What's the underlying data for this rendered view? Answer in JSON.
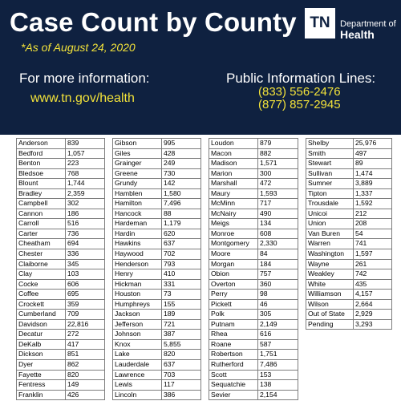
{
  "header": {
    "title": "Case Count by County",
    "as_of": "*As of August 24, 2020",
    "info_label": "For more information:",
    "info_link": "www.tn.gov/health",
    "lines_label": "Public Information Lines:",
    "phone1": "(833) 556-2476",
    "phone2": "(877) 857-2945"
  },
  "logo": {
    "mark": "TN",
    "line1": "Department of",
    "line2": "Health",
    "colors": {
      "background": "#ffffff",
      "text": "#0f2140"
    }
  },
  "colors": {
    "header_bg": "#0f2140",
    "accent_yellow": "#f2e23a",
    "border": "#7d7d7d"
  },
  "tables": [
    {
      "rows": [
        [
          "Anderson",
          "839"
        ],
        [
          "Bedford",
          "1,057"
        ],
        [
          "Benton",
          "223"
        ],
        [
          "Bledsoe",
          "768"
        ],
        [
          "Blount",
          "1,744"
        ],
        [
          "Bradley",
          "2,359"
        ],
        [
          "Campbell",
          "302"
        ],
        [
          "Cannon",
          "186"
        ],
        [
          "Carroll",
          "516"
        ],
        [
          "Carter",
          "736"
        ],
        [
          "Cheatham",
          "694"
        ],
        [
          "Chester",
          "336"
        ],
        [
          "Claiborne",
          "345"
        ],
        [
          "Clay",
          "103"
        ],
        [
          "Cocke",
          "606"
        ],
        [
          "Coffee",
          "695"
        ],
        [
          "Crockett",
          "359"
        ],
        [
          "Cumberland",
          "709"
        ],
        [
          "Davidson",
          "22,816"
        ],
        [
          "Decatur",
          "272"
        ],
        [
          "DeKalb",
          "417"
        ],
        [
          "Dickson",
          "851"
        ],
        [
          "Dyer",
          "862"
        ],
        [
          "Fayette",
          "820"
        ],
        [
          "Fentress",
          "149"
        ],
        [
          "Franklin",
          "426"
        ]
      ]
    },
    {
      "rows": [
        [
          "Gibson",
          "995"
        ],
        [
          "Giles",
          "428"
        ],
        [
          "Grainger",
          "249"
        ],
        [
          "Greene",
          "730"
        ],
        [
          "Grundy",
          "142"
        ],
        [
          "Hamblen",
          "1,580"
        ],
        [
          "Hamilton",
          "7,496"
        ],
        [
          "Hancock",
          "88"
        ],
        [
          "Hardeman",
          "1,179"
        ],
        [
          "Hardin",
          "620"
        ],
        [
          "Hawkins",
          "637"
        ],
        [
          "Haywood",
          "702"
        ],
        [
          "Henderson",
          "793"
        ],
        [
          "Henry",
          "410"
        ],
        [
          "Hickman",
          "331"
        ],
        [
          "Houston",
          "73"
        ],
        [
          "Humphreys",
          "155"
        ],
        [
          "Jackson",
          "189"
        ],
        [
          "Jefferson",
          "721"
        ],
        [
          "Johnson",
          "387"
        ],
        [
          "Knox",
          "5,855"
        ],
        [
          "Lake",
          "820"
        ],
        [
          "Lauderdale",
          "637"
        ],
        [
          "Lawrence",
          "703"
        ],
        [
          "Lewis",
          "117"
        ],
        [
          "Lincoln",
          "386"
        ]
      ]
    },
    {
      "rows": [
        [
          "Loudon",
          "879"
        ],
        [
          "Macon",
          "882"
        ],
        [
          "Madison",
          "1,571"
        ],
        [
          "Marion",
          "300"
        ],
        [
          "Marshall",
          "472"
        ],
        [
          "Maury",
          "1,593"
        ],
        [
          "McMinn",
          "717"
        ],
        [
          "McNairy",
          "490"
        ],
        [
          "Meigs",
          "134"
        ],
        [
          "Monroe",
          "608"
        ],
        [
          "Montgomery",
          "2,330"
        ],
        [
          "Moore",
          "84"
        ],
        [
          "Morgan",
          "184"
        ],
        [
          "Obion",
          "757"
        ],
        [
          "Overton",
          "360"
        ],
        [
          "Perry",
          "98"
        ],
        [
          "Pickett",
          "46"
        ],
        [
          "Polk",
          "305"
        ],
        [
          "Putnam",
          "2,149"
        ],
        [
          "Rhea",
          "616"
        ],
        [
          "Roane",
          "587"
        ],
        [
          "Robertson",
          "1,751"
        ],
        [
          "Rutherford",
          "7,486"
        ],
        [
          "Scott",
          "153"
        ],
        [
          "Sequatchie",
          "138"
        ],
        [
          "Sevier",
          "2,154"
        ]
      ]
    },
    {
      "rows": [
        [
          "Shelby",
          "25,976"
        ],
        [
          "Smith",
          "497"
        ],
        [
          "Stewart",
          "89"
        ],
        [
          "Sullivan",
          "1,474"
        ],
        [
          "Sumner",
          "3,889"
        ],
        [
          "Tipton",
          "1,337"
        ],
        [
          "Trousdale",
          "1,592"
        ],
        [
          "Unicoi",
          "212"
        ],
        [
          "Union",
          "208"
        ],
        [
          "Van Buren",
          "54"
        ],
        [
          "Warren",
          "741"
        ],
        [
          "Washington",
          "1,597"
        ],
        [
          "Wayne",
          "261"
        ],
        [
          "Weakley",
          "742"
        ],
        [
          "White",
          "435"
        ],
        [
          "Williamson",
          "4,157"
        ],
        [
          "Wilson",
          "2,664"
        ],
        [
          "Out of State",
          "2,929"
        ],
        [
          "Pending",
          "3,293"
        ]
      ]
    }
  ]
}
